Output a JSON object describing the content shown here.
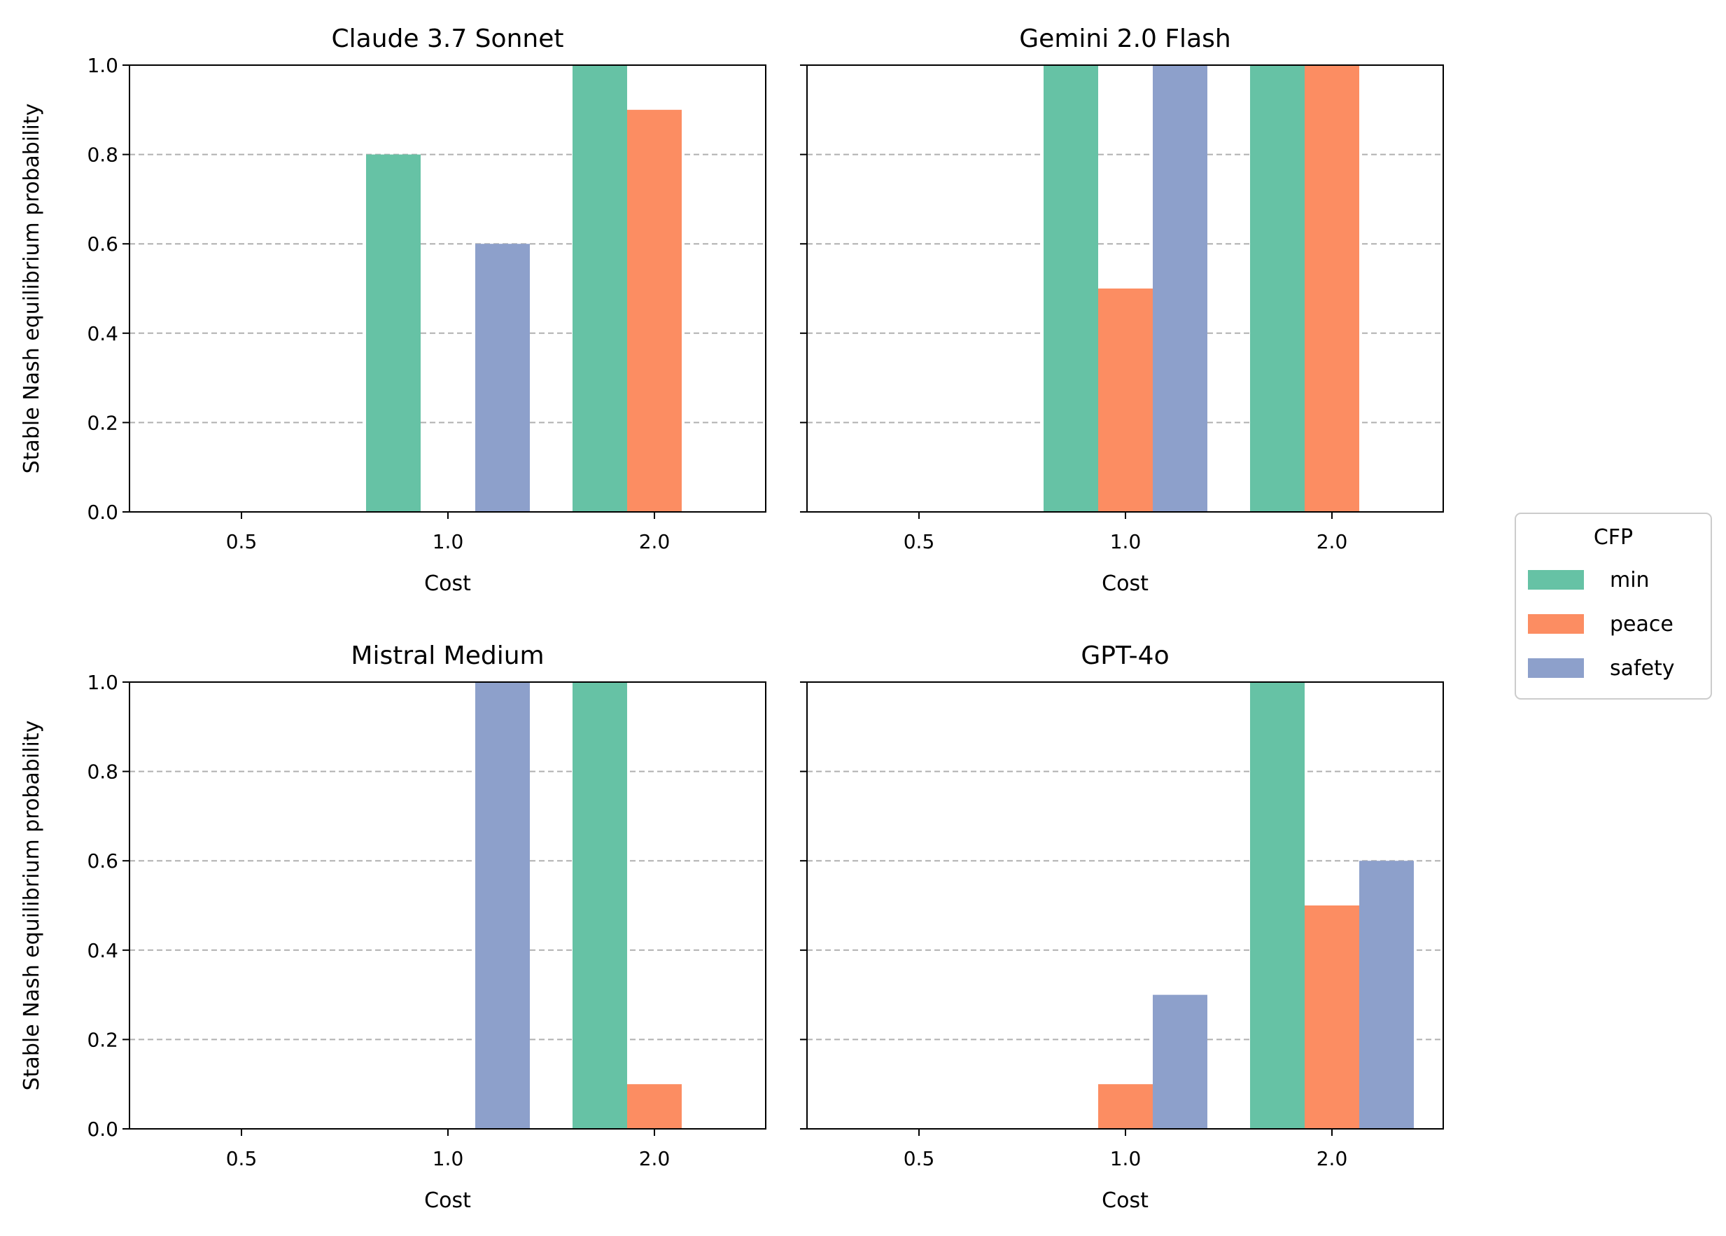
{
  "chart_data": [
    {
      "type": "bar",
      "title": "Claude 3.7 Sonnet",
      "xlabel": "Cost",
      "ylabel": "Stable Nash equilibrium probability",
      "categories": [
        "0.5",
        "1.0",
        "2.0"
      ],
      "ylim": [
        0,
        1.0
      ],
      "yticks": [
        "0.0",
        "0.2",
        "0.4",
        "0.6",
        "0.8",
        "1.0"
      ],
      "grid": "y dashed",
      "series": [
        {
          "name": "min",
          "values": [
            0,
            0.8,
            1.0
          ]
        },
        {
          "name": "peace",
          "values": [
            0,
            0,
            0.9
          ]
        },
        {
          "name": "safety",
          "values": [
            0,
            0.6,
            0
          ]
        }
      ]
    },
    {
      "type": "bar",
      "title": "Gemini 2.0 Flash",
      "xlabel": "Cost",
      "ylabel": "",
      "categories": [
        "0.5",
        "1.0",
        "2.0"
      ],
      "ylim": [
        0,
        1.0
      ],
      "yticks": [],
      "grid": "y dashed",
      "series": [
        {
          "name": "min",
          "values": [
            0,
            1.0,
            1.0
          ]
        },
        {
          "name": "peace",
          "values": [
            0,
            0.5,
            1.0
          ]
        },
        {
          "name": "safety",
          "values": [
            0,
            1.0,
            0
          ]
        }
      ]
    },
    {
      "type": "bar",
      "title": "Mistral Medium",
      "xlabel": "Cost",
      "ylabel": "Stable Nash equilibrium probability",
      "categories": [
        "0.5",
        "1.0",
        "2.0"
      ],
      "ylim": [
        0,
        1.0
      ],
      "yticks": [
        "0.0",
        "0.2",
        "0.4",
        "0.6",
        "0.8",
        "1.0"
      ],
      "grid": "y dashed",
      "series": [
        {
          "name": "min",
          "values": [
            0,
            0,
            1.0
          ]
        },
        {
          "name": "peace",
          "values": [
            0,
            0,
            0.1
          ]
        },
        {
          "name": "safety",
          "values": [
            0,
            1.0,
            0
          ]
        }
      ]
    },
    {
      "type": "bar",
      "title": "GPT-4o",
      "xlabel": "Cost",
      "ylabel": "",
      "categories": [
        "0.5",
        "1.0",
        "2.0"
      ],
      "ylim": [
        0,
        1.0
      ],
      "yticks": [],
      "grid": "y dashed",
      "series": [
        {
          "name": "min",
          "values": [
            0,
            0,
            1.0
          ]
        },
        {
          "name": "peace",
          "values": [
            0,
            0.1,
            0.5
          ]
        },
        {
          "name": "safety",
          "values": [
            0,
            0.3,
            0.6
          ]
        }
      ]
    }
  ],
  "legend": {
    "title": "CFP",
    "placement": "right",
    "items": [
      {
        "label": "min",
        "color": "#66c2a5"
      },
      {
        "label": "peace",
        "color": "#fc8d62"
      },
      {
        "label": "safety",
        "color": "#8da0cb"
      }
    ]
  },
  "colors": {
    "min": "#66c2a5",
    "peace": "#fc8d62",
    "safety": "#8da0cb",
    "grid": "#b0b0b0"
  }
}
